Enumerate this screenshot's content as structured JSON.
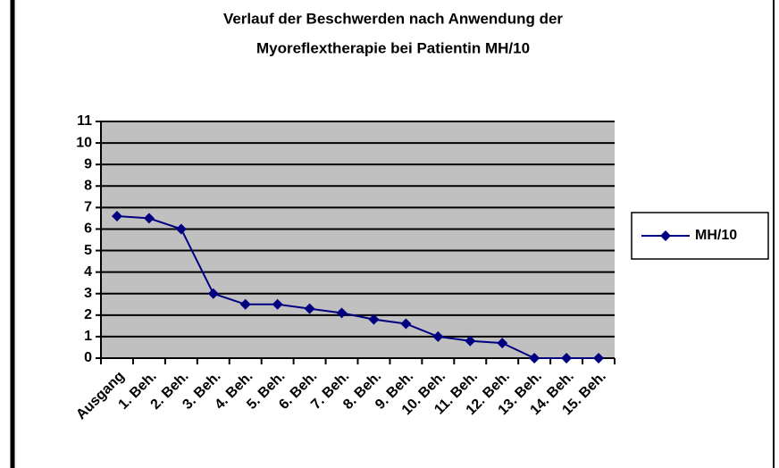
{
  "chart_data": {
    "type": "line",
    "title": [
      "Verlauf der Beschwerden nach Anwendung der",
      "Myoreflextherapie bei Patientin MH/10"
    ],
    "categories": [
      "Ausgang",
      "1. Beh.",
      "2. Beh.",
      "3. Beh.",
      "4. Beh.",
      "5. Beh.",
      "6. Beh.",
      "7. Beh.",
      "8. Beh.",
      "9. Beh.",
      "10. Beh.",
      "11. Beh.",
      "12. Beh.",
      "13. Beh.",
      "14. Beh.",
      "15. Beh."
    ],
    "series": [
      {
        "name": "MH/10",
        "color": "#000080",
        "values": [
          6.6,
          6.5,
          6.0,
          3.0,
          2.5,
          2.5,
          2.3,
          2.1,
          1.8,
          1.6,
          1.0,
          0.8,
          0.7,
          0,
          0,
          0
        ]
      }
    ],
    "ylim": [
      0,
      11
    ],
    "yticks": [
      0,
      1,
      2,
      3,
      4,
      5,
      6,
      7,
      8,
      9,
      10,
      11
    ],
    "grid": true,
    "plot_background": "#c0c0c0",
    "legend": "right"
  }
}
